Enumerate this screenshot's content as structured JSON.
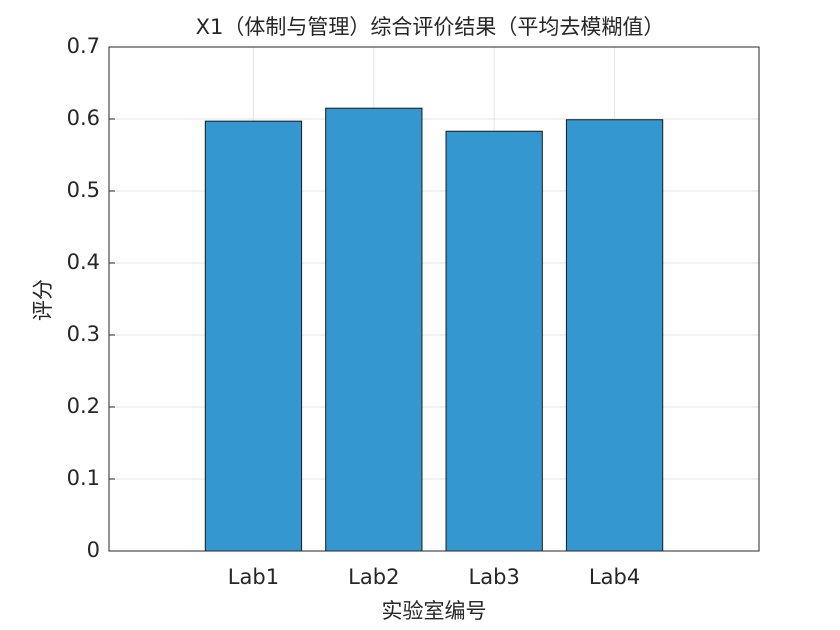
{
  "chart_data": {
    "type": "bar",
    "title": "X1（体制与管理）综合评价结果（平均去模糊值）",
    "x_label": "实验室编号",
    "y_label": "评分",
    "categories": [
      "Lab1",
      "Lab2",
      "Lab3",
      "Lab4"
    ],
    "values": [
      0.597,
      0.615,
      0.583,
      0.599
    ],
    "color": "#3497cf",
    "ylim": [
      0,
      0.7
    ],
    "yticks": [
      0,
      0.1,
      0.2,
      0.3,
      0.4,
      0.5,
      0.6,
      0.7
    ],
    "grid": true
  }
}
